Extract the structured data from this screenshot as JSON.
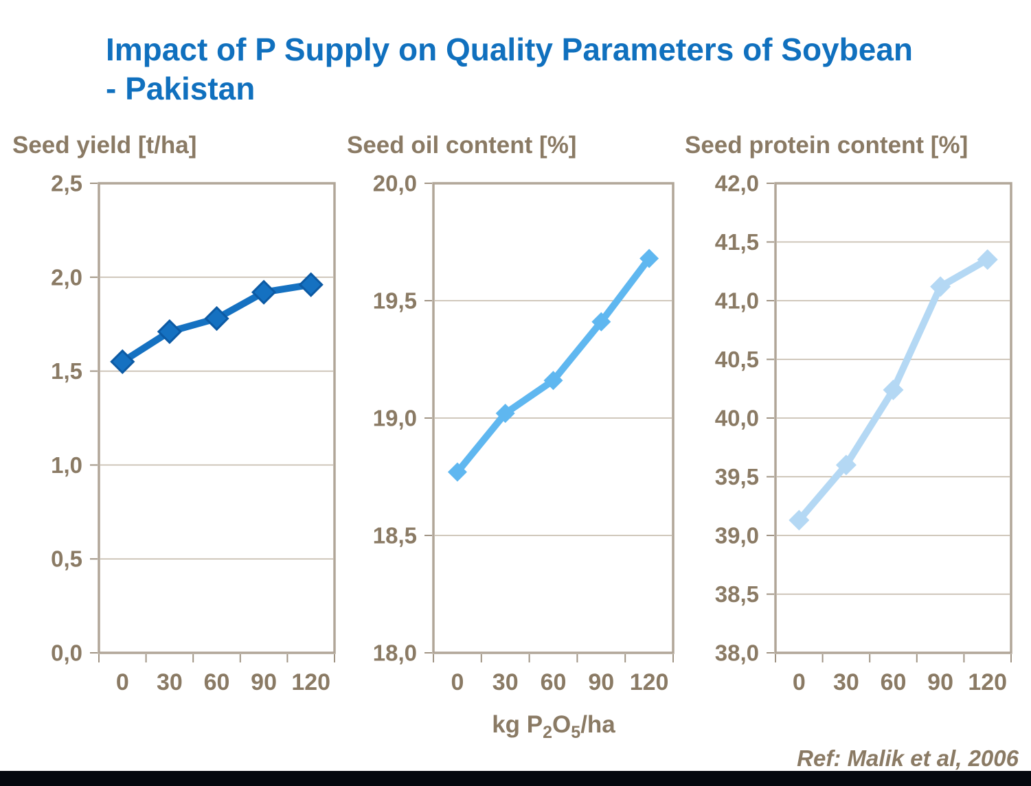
{
  "slide": {
    "title_line1": "Impact of P Supply on Quality Parameters of Soybean",
    "title_line2": "- Pakistan"
  },
  "reference": "Ref: Malik et al, 2006",
  "x_axis_label": {
    "text": "kg P2O5/ha",
    "parts": [
      {
        "t": "kg P"
      },
      {
        "t": "2",
        "sub": true
      },
      {
        "t": "O"
      },
      {
        "t": "5",
        "sub": true
      },
      {
        "t": "/ha"
      }
    ]
  },
  "colors": {
    "title_blue": "#1070BE",
    "label_taupe": "#8A7A64",
    "grid": "#C0B5A5",
    "frame": "#B1A698",
    "tick": "#A09484",
    "plot_bg": "#FFFFFF",
    "bottom_bar": "#05080e"
  },
  "chart_data": [
    {
      "type": "line",
      "title": "Seed yield [t/ha]",
      "categories": [
        0,
        30,
        60,
        90,
        120
      ],
      "xtick_labels": [
        "0",
        "30",
        "60",
        "90",
        "120"
      ],
      "values": [
        1.55,
        1.71,
        1.78,
        1.92,
        1.96
      ],
      "ylim": [
        0.0,
        2.5
      ],
      "ytick_step": 0.5,
      "ytick_labels": [
        "0,0",
        "0,5",
        "1,0",
        "1,5",
        "2,0",
        "2,5"
      ],
      "grid": true,
      "legend": "none",
      "line_color": "#1571C1",
      "marker_color": "#1571C1",
      "marker_outline": "#0C5AA4",
      "marker_size": 16
    },
    {
      "type": "line",
      "title": "Seed oil content [%]",
      "categories": [
        0,
        30,
        60,
        90,
        120
      ],
      "xtick_labels": [
        "0",
        "30",
        "60",
        "90",
        "120"
      ],
      "values": [
        18.77,
        19.02,
        19.16,
        19.41,
        19.68
      ],
      "ylim": [
        18.0,
        20.0
      ],
      "ytick_step": 0.5,
      "ytick_labels": [
        "18,0",
        "18,5",
        "19,0",
        "19,5",
        "20,0"
      ],
      "grid": true,
      "legend": "none",
      "line_color": "#5FB7F0",
      "marker_color": "#5FB7F0",
      "marker_outline": null,
      "marker_size": 14
    },
    {
      "type": "line",
      "title": "Seed protein content [%]",
      "categories": [
        0,
        30,
        60,
        90,
        120
      ],
      "xtick_labels": [
        "0",
        "30",
        "60",
        "90",
        "120"
      ],
      "values": [
        39.13,
        39.6,
        40.24,
        41.12,
        41.35
      ],
      "ylim": [
        38.0,
        42.0
      ],
      "ytick_step": 0.5,
      "ytick_labels": [
        "38,0",
        "38,5",
        "39,0",
        "39,5",
        "40,0",
        "40,5",
        "41,0",
        "41,5",
        "42,0"
      ],
      "grid": true,
      "legend": "none",
      "line_color": "#B4D8F4",
      "marker_color": "#B4D8F4",
      "marker_outline": null,
      "marker_size": 15
    }
  ],
  "x_axis_shared_note": "kg P2O5/ha applies to all three panels"
}
